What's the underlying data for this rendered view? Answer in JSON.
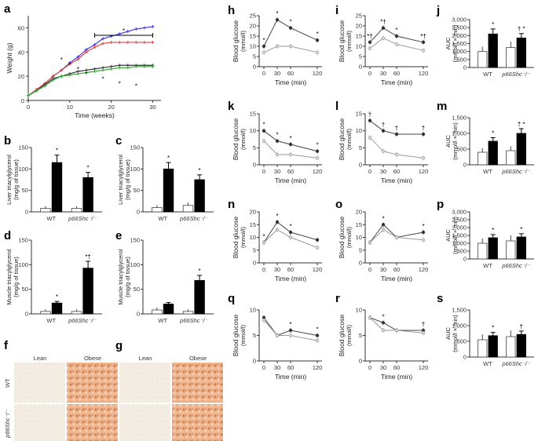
{
  "chart_data": [
    {
      "panel": "a",
      "type": "line",
      "xlabel": "Time (weeks)",
      "ylabel": "Weight (g)",
      "xlim": [
        0,
        32
      ],
      "ylim": [
        0,
        70
      ],
      "xticks": [
        "0",
        "10",
        "20",
        "30"
      ],
      "yticks": [
        "0",
        "20",
        "40",
        "60"
      ],
      "bracket_label": "*",
      "x": [
        0,
        2,
        4,
        6,
        8,
        10,
        12,
        14,
        16,
        18,
        20,
        22,
        24,
        26,
        28,
        30
      ],
      "series": [
        {
          "name": "blue",
          "color": "#3b3be0",
          "values": [
            4,
            9,
            14,
            20,
            25,
            31,
            36,
            42,
            46,
            51,
            53,
            55,
            57,
            59,
            60,
            61
          ]
        },
        {
          "name": "red",
          "color": "#e04545",
          "values": [
            4,
            9,
            14,
            20,
            25,
            30,
            34,
            40,
            44,
            47,
            48,
            48,
            48,
            48,
            48,
            48
          ]
        },
        {
          "name": "black",
          "color": "#333333",
          "values": [
            4,
            8,
            13,
            18,
            20,
            22,
            24,
            25,
            26,
            27,
            28,
            29,
            29,
            29,
            29,
            29
          ]
        },
        {
          "name": "green",
          "color": "#3aa63a",
          "values": [
            4,
            8,
            12,
            17,
            20,
            21,
            22,
            23,
            24,
            25,
            26,
            27,
            27,
            28,
            28,
            28
          ]
        }
      ]
    },
    {
      "panel": "b",
      "type": "bar",
      "ylabel": "Liver triacylglycerol (mg/g of tissue)",
      "ylim": [
        0,
        150
      ],
      "yticks": [
        "0",
        "50",
        "100",
        "150"
      ],
      "categories": [
        "WT",
        "p66Shc⁻/⁻"
      ],
      "series": [
        {
          "name": "Lean",
          "values": [
            8,
            8
          ]
        },
        {
          "name": "Obese",
          "values": [
            115,
            80
          ]
        }
      ],
      "annotations": [
        "*",
        "*"
      ]
    },
    {
      "panel": "c",
      "type": "bar",
      "ylabel": "Liver triacylglycerol (mg/g of tissue)",
      "ylim": [
        0,
        150
      ],
      "yticks": [
        "0",
        "50",
        "100",
        "150"
      ],
      "categories": [
        "WT",
        "p66Shc⁻/⁻"
      ],
      "series": [
        {
          "name": "Lean",
          "values": [
            10,
            15
          ]
        },
        {
          "name": "Obese",
          "values": [
            100,
            75
          ]
        }
      ],
      "annotations": [
        "*",
        "*"
      ]
    },
    {
      "panel": "d",
      "type": "bar",
      "ylabel": "Muscle triacylglycerol (mg/g of tissue)",
      "ylim": [
        0,
        150
      ],
      "yticks": [
        "0",
        "50",
        "100",
        "150"
      ],
      "categories": [
        "WT",
        "p66Shc⁻/⁻"
      ],
      "series": [
        {
          "name": "Lean",
          "values": [
            5,
            5
          ]
        },
        {
          "name": "Obese",
          "values": [
            22,
            93
          ]
        }
      ],
      "annotations": [
        "*",
        "*†"
      ]
    },
    {
      "panel": "e",
      "type": "bar",
      "ylabel": "Muscle triacylglycerol (mg/g of tissue)",
      "ylim": [
        0,
        150
      ],
      "yticks": [
        "0",
        "50",
        "100",
        "150"
      ],
      "categories": [
        "WT",
        "p66Shc⁻/⁻"
      ],
      "series": [
        {
          "name": "Lean",
          "values": [
            8,
            5
          ]
        },
        {
          "name": "Obese",
          "values": [
            20,
            68
          ]
        }
      ],
      "annotations": [
        "",
        "*"
      ]
    },
    {
      "panel": "h",
      "type": "line",
      "xlabel": "Time (min)",
      "ylabel": "Blood glucose (mmol/l)",
      "x": [
        0,
        30,
        60,
        120
      ],
      "ylim": [
        0,
        25
      ],
      "yticks": [
        "0",
        "5",
        "10",
        "15",
        "20",
        "25"
      ],
      "xticks": [
        "0",
        "30",
        "60",
        "120"
      ],
      "series": [
        {
          "name": "obese",
          "values": [
            10,
            23,
            19,
            13
          ]
        },
        {
          "name": "lean",
          "values": [
            7,
            10,
            10,
            7
          ]
        }
      ],
      "marks": [
        "*",
        "*",
        "*",
        "*"
      ]
    },
    {
      "panel": "i",
      "type": "line",
      "xlabel": "Time (min)",
      "ylabel": "Blood glucose (mmol/l)",
      "x": [
        0,
        30,
        60,
        120
      ],
      "ylim": [
        0,
        25
      ],
      "yticks": [
        "0",
        "5",
        "10",
        "15",
        "20",
        "25"
      ],
      "xticks": [
        "0",
        "30",
        "60",
        "120"
      ],
      "series": [
        {
          "name": "obese",
          "values": [
            12,
            19,
            15,
            12
          ]
        },
        {
          "name": "lean",
          "values": [
            9,
            14,
            11,
            8
          ]
        }
      ],
      "marks": [
        "*†",
        "*†",
        "*",
        "*†"
      ]
    },
    {
      "panel": "j",
      "type": "bar",
      "ylabel": "AUC (mmol/l × min)",
      "ylim": [
        0,
        3000
      ],
      "yticks": [
        "0",
        "500",
        "1,000",
        "1,500",
        "2,000",
        "2,500",
        "3,000"
      ],
      "categories": [
        "WT",
        "p66Shc⁻/⁻"
      ],
      "series": [
        {
          "name": "Lean",
          "values": [
            1000,
            1250
          ]
        },
        {
          "name": "Obese",
          "values": [
            2100,
            1850
          ]
        }
      ],
      "annotations": [
        "*",
        "† *"
      ]
    },
    {
      "panel": "k",
      "type": "line",
      "xlabel": "Time (min)",
      "ylabel": "Blood glucose (mmol/l)",
      "x": [
        0,
        30,
        60,
        120
      ],
      "ylim": [
        0,
        15
      ],
      "yticks": [
        "0",
        "5",
        "10",
        "15"
      ],
      "xticks": [
        "0",
        "30",
        "60",
        "120"
      ],
      "series": [
        {
          "name": "obese",
          "values": [
            10,
            7,
            6,
            4
          ]
        },
        {
          "name": "lean",
          "values": [
            7,
            3,
            3,
            2
          ]
        }
      ],
      "marks": [
        "*",
        "*",
        "*",
        "*"
      ]
    },
    {
      "panel": "l",
      "type": "line",
      "xlabel": "Time (min)",
      "ylabel": "Blood glucose (mmol/l)",
      "x": [
        0,
        30,
        60,
        120
      ],
      "ylim": [
        0,
        15
      ],
      "yticks": [
        "0",
        "5",
        "10",
        "15"
      ],
      "xticks": [
        "0",
        "30",
        "60",
        "120"
      ],
      "series": [
        {
          "name": "obese",
          "values": [
            13,
            10,
            9,
            9
          ]
        },
        {
          "name": "lean",
          "values": [
            8,
            4,
            3,
            2
          ]
        }
      ],
      "marks": [
        "†",
        "†",
        "†",
        "†"
      ]
    },
    {
      "panel": "m",
      "type": "bar",
      "ylabel": "AUC (mmol/l × min)",
      "ylim": [
        0,
        1500
      ],
      "yticks": [
        "0",
        "500",
        "1,000",
        "1,500"
      ],
      "categories": [
        "WT",
        "p66Shc⁻/⁻"
      ],
      "series": [
        {
          "name": "Lean",
          "values": [
            400,
            450
          ]
        },
        {
          "name": "Obese",
          "values": [
            750,
            1000
          ]
        }
      ],
      "annotations": [
        "*",
        "† *"
      ]
    },
    {
      "panel": "n",
      "type": "line",
      "xlabel": "Time (min)",
      "ylabel": "Blood glucose (mmol/l)",
      "x": [
        0,
        30,
        60,
        120
      ],
      "ylim": [
        0,
        20
      ],
      "yticks": [
        "0",
        "5",
        "10",
        "15",
        "20"
      ],
      "xticks": [
        "0",
        "30",
        "60",
        "120"
      ],
      "series": [
        {
          "name": "obese",
          "values": [
            8,
            16,
            12,
            9
          ]
        },
        {
          "name": "lean",
          "values": [
            8,
            13,
            10,
            6
          ]
        }
      ],
      "marks": [
        "*",
        "*",
        "*",
        ""
      ]
    },
    {
      "panel": "o",
      "type": "line",
      "xlabel": "Time (min)",
      "ylabel": "Blood glucose (mmol/l)",
      "x": [
        0,
        30,
        60,
        120
      ],
      "ylim": [
        0,
        20
      ],
      "yticks": [
        "0",
        "5",
        "10",
        "15",
        "20"
      ],
      "xticks": [
        "0",
        "30",
        "60",
        "120"
      ],
      "series": [
        {
          "name": "obese",
          "values": [
            8,
            15,
            10,
            12
          ]
        },
        {
          "name": "lean",
          "values": [
            8,
            13,
            10,
            9
          ]
        }
      ],
      "marks": [
        "",
        "*",
        "",
        "*"
      ]
    },
    {
      "panel": "p",
      "type": "bar",
      "ylabel": "AUC (mmol/l × min)",
      "ylim": [
        0,
        3000
      ],
      "yticks": [
        "0",
        "500",
        "1,000",
        "1,500",
        "2,000",
        "2,500",
        "3,000"
      ],
      "categories": [
        "WT",
        "p66Shc⁻/⁻"
      ],
      "series": [
        {
          "name": "Lean",
          "values": [
            1000,
            1150
          ]
        },
        {
          "name": "Obese",
          "values": [
            1350,
            1400
          ]
        }
      ],
      "annotations": [
        "*",
        "*"
      ]
    },
    {
      "panel": "q",
      "type": "line",
      "xlabel": "Time (min)",
      "ylabel": "Blood glucose (mmol/l)",
      "x": [
        0,
        30,
        60,
        120
      ],
      "ylim": [
        0,
        10
      ],
      "yticks": [
        "0",
        "5",
        "10"
      ],
      "xticks": [
        "0",
        "30",
        "60",
        "120"
      ],
      "series": [
        {
          "name": "obese",
          "values": [
            8.5,
            5,
            6,
            5
          ]
        },
        {
          "name": "lean",
          "values": [
            8,
            5,
            5,
            4
          ]
        }
      ],
      "marks": [
        "",
        "",
        "*",
        "*"
      ]
    },
    {
      "panel": "r",
      "type": "line",
      "xlabel": "Time (min)",
      "ylabel": "Blood glucose (mmol/l)",
      "x": [
        0,
        30,
        60,
        120
      ],
      "ylim": [
        0,
        10
      ],
      "yticks": [
        "0",
        "5",
        "10"
      ],
      "xticks": [
        "0",
        "30",
        "60",
        "120"
      ],
      "series": [
        {
          "name": "obese",
          "values": [
            8.5,
            7.5,
            6,
            6
          ]
        },
        {
          "name": "lean",
          "values": [
            8.5,
            6,
            6,
            5.5
          ]
        }
      ],
      "marks": [
        "",
        "*",
        "",
        "†"
      ]
    },
    {
      "panel": "s",
      "type": "bar",
      "ylabel": "AUC (mmol/l × min)",
      "ylim": [
        0,
        1500
      ],
      "yticks": [
        "0",
        "500",
        "1,000",
        "1,500"
      ],
      "categories": [
        "WT",
        "p66Shc⁻/⁻"
      ],
      "series": [
        {
          "name": "Lean",
          "values": [
            550,
            650
          ]
        },
        {
          "name": "Obese",
          "values": [
            680,
            720
          ]
        }
      ],
      "annotations": [
        "*",
        "†"
      ]
    }
  ],
  "histology": {
    "f": {
      "col_labels": [
        "Lean",
        "Obese"
      ],
      "row_labels": [
        "WT",
        "p66Shc⁻/⁻"
      ]
    },
    "g": {
      "col_labels": [
        "Lean",
        "Obese"
      ]
    }
  },
  "colors": {
    "lean_bar": "#ffffff",
    "obese_bar": "#000000",
    "lean_line": "#999999",
    "obese_line": "#444444",
    "tissue_lean": "#f4eee6",
    "tissue_obese": "#e3a079"
  }
}
